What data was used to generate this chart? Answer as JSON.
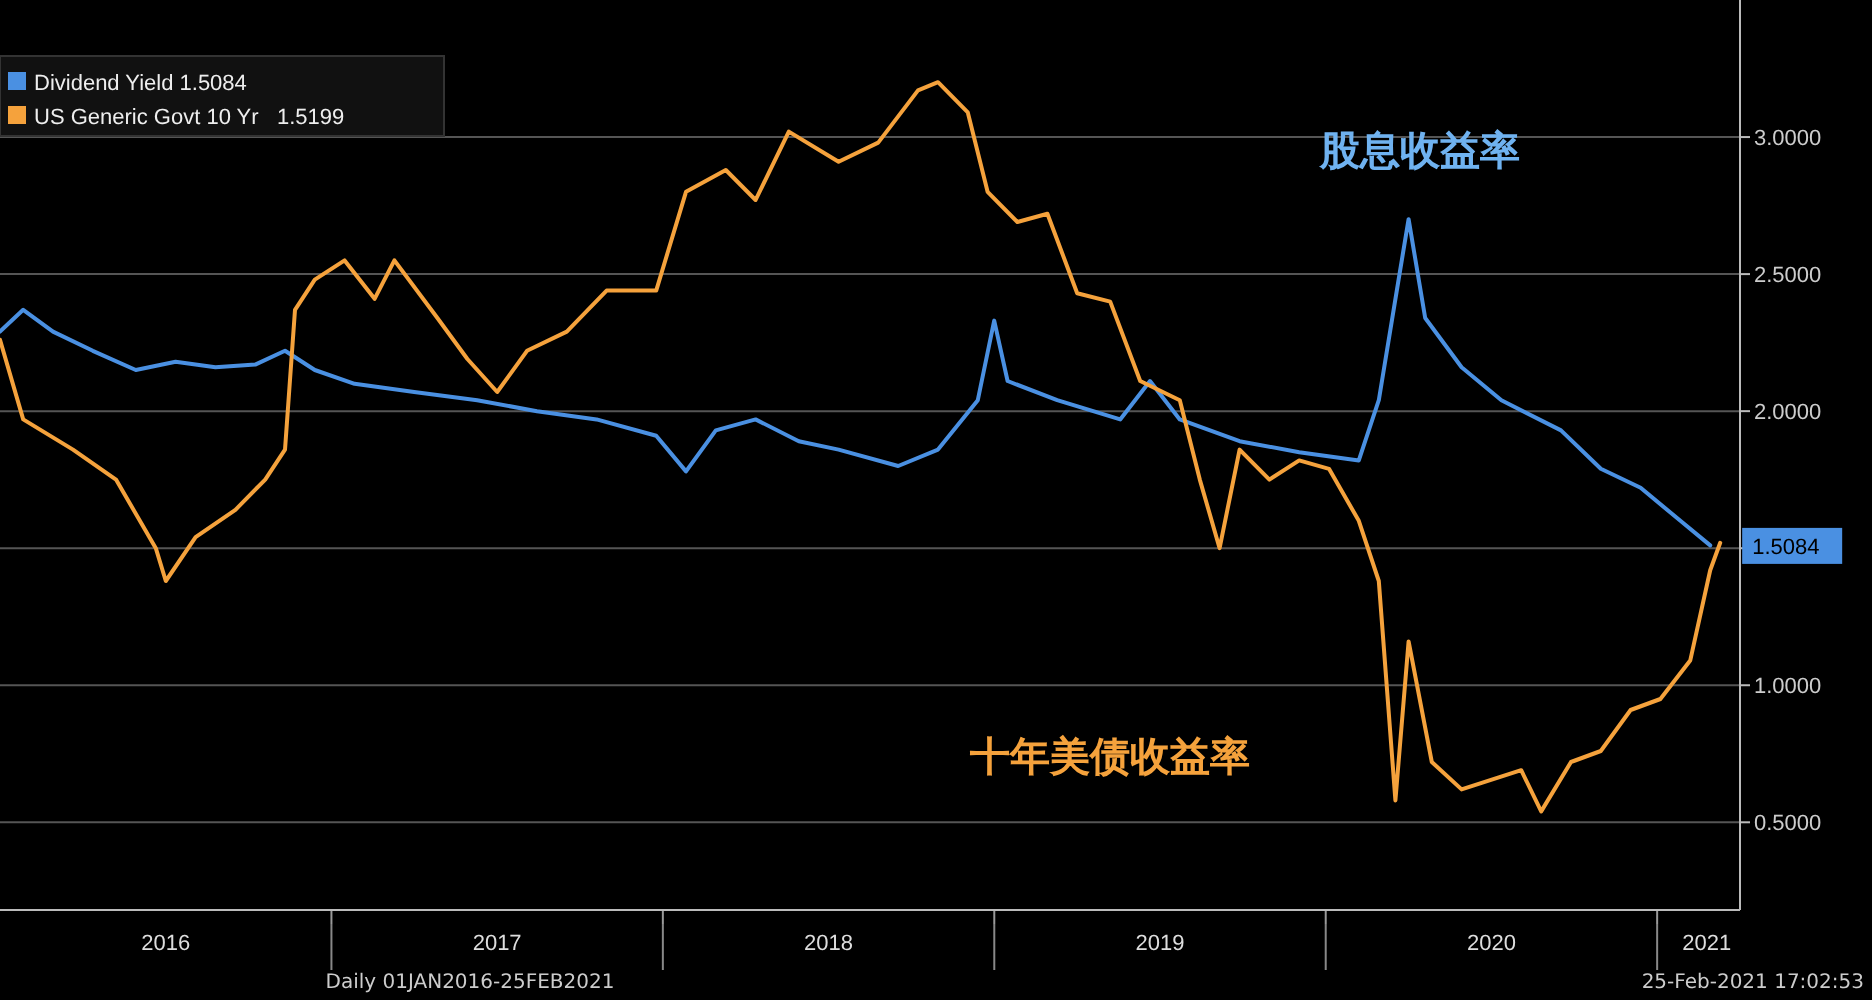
{
  "chart_data": {
    "type": "line",
    "xlim": [
      2016.0,
      2021.25
    ],
    "xticks": [
      {
        "value": 2016.5,
        "label": "2016"
      },
      {
        "value": 2017,
        "label": null
      },
      {
        "value": 2017.5,
        "label": "2017"
      },
      {
        "value": 2018,
        "label": null
      },
      {
        "value": 2018.5,
        "label": "2018"
      },
      {
        "value": 2019,
        "label": null
      },
      {
        "value": 2019.5,
        "label": "2019"
      },
      {
        "value": 2020,
        "label": null
      },
      {
        "value": 2020.5,
        "label": "2020"
      },
      {
        "value": 2021,
        "label": null
      },
      {
        "value": 2021.15,
        "label": "2021"
      }
    ],
    "ylim": [
      0.18,
      3.5
    ],
    "yticks": [
      {
        "value": 0.5,
        "label": "0.5000"
      },
      {
        "value": 1.0,
        "label": "1.0000"
      },
      {
        "value": 1.5,
        "label": null
      },
      {
        "value": 2.0,
        "label": "2.0000"
      },
      {
        "value": 2.5,
        "label": "2.5000"
      },
      {
        "value": 3.0,
        "label": "3.0000"
      }
    ],
    "grid": "y",
    "legend": "top left",
    "line_style": "solid",
    "marker": "none",
    "series": [
      {
        "name": "Dividend Yield 1.5084",
        "color": "#4a90e2",
        "x": [
          2016.0,
          2016.07,
          2016.16,
          2016.28,
          2016.41,
          2016.53,
          2016.65,
          2016.77,
          2016.86,
          2016.95,
          2017.07,
          2017.25,
          2017.44,
          2017.62,
          2017.8,
          2017.98,
          2018.07,
          2018.16,
          2018.28,
          2018.41,
          2018.53,
          2018.71,
          2018.83,
          2018.95,
          2019.0,
          2019.04,
          2019.19,
          2019.38,
          2019.47,
          2019.56,
          2019.74,
          2019.92,
          2020.1,
          2020.16,
          2020.22,
          2020.25,
          2020.3,
          2020.41,
          2020.53,
          2020.71,
          2020.83,
          2020.95,
          2021.07,
          2021.16
        ],
        "values": [
          2.29,
          2.37,
          2.29,
          2.22,
          2.15,
          2.18,
          2.16,
          2.17,
          2.22,
          2.15,
          2.1,
          2.07,
          2.04,
          2.0,
          1.97,
          1.91,
          1.78,
          1.93,
          1.97,
          1.89,
          1.86,
          1.8,
          1.86,
          2.04,
          2.33,
          2.11,
          2.04,
          1.97,
          2.11,
          1.97,
          1.89,
          1.85,
          1.82,
          2.04,
          2.48,
          2.7,
          2.34,
          2.16,
          2.04,
          1.93,
          1.79,
          1.72,
          1.6,
          1.51
        ]
      },
      {
        "name": "US Generic Govt 10 Yr   1.5199",
        "color": "#f5a23c",
        "x": [
          2016.0,
          2016.07,
          2016.22,
          2016.35,
          2016.47,
          2016.5,
          2016.59,
          2016.71,
          2016.8,
          2016.86,
          2016.89,
          2016.95,
          2017.04,
          2017.13,
          2017.19,
          2017.32,
          2017.41,
          2017.5,
          2017.59,
          2017.71,
          2017.83,
          2017.98,
          2018.07,
          2018.19,
          2018.28,
          2018.38,
          2018.53,
          2018.65,
          2018.77,
          2018.83,
          2018.92,
          2018.98,
          2019.07,
          2019.16,
          2019.25,
          2019.35,
          2019.44,
          2019.56,
          2019.62,
          2019.68,
          2019.74,
          2019.83,
          2019.92,
          2020.01,
          2020.1,
          2020.16,
          2020.21,
          2020.25,
          2020.32,
          2020.41,
          2020.59,
          2020.65,
          2020.74,
          2020.83,
          2020.92,
          2021.01,
          2021.1,
          2021.16,
          2021.19
        ],
        "values": [
          2.26,
          1.97,
          1.86,
          1.75,
          1.5,
          1.38,
          1.54,
          1.64,
          1.75,
          1.86,
          2.37,
          2.48,
          2.55,
          2.41,
          2.55,
          2.34,
          2.19,
          2.07,
          2.22,
          2.29,
          2.44,
          2.44,
          2.8,
          2.88,
          2.77,
          3.02,
          2.91,
          2.98,
          3.17,
          3.2,
          3.09,
          2.8,
          2.69,
          2.72,
          2.43,
          2.4,
          2.11,
          2.04,
          1.75,
          1.5,
          1.86,
          1.75,
          1.82,
          1.79,
          1.6,
          1.38,
          0.58,
          1.16,
          0.72,
          0.62,
          0.69,
          0.54,
          0.72,
          0.76,
          0.91,
          0.95,
          1.09,
          1.42,
          1.52
        ]
      }
    ],
    "annotations": [
      {
        "text": "1.5084",
        "x": 2021.16,
        "y": 1.5084
      },
      "股息收益率",
      "十年美债收益率",
      "Daily 01JAN2016-25FEB2021",
      "25-Feb-2021 17:02:53"
    ]
  }
}
